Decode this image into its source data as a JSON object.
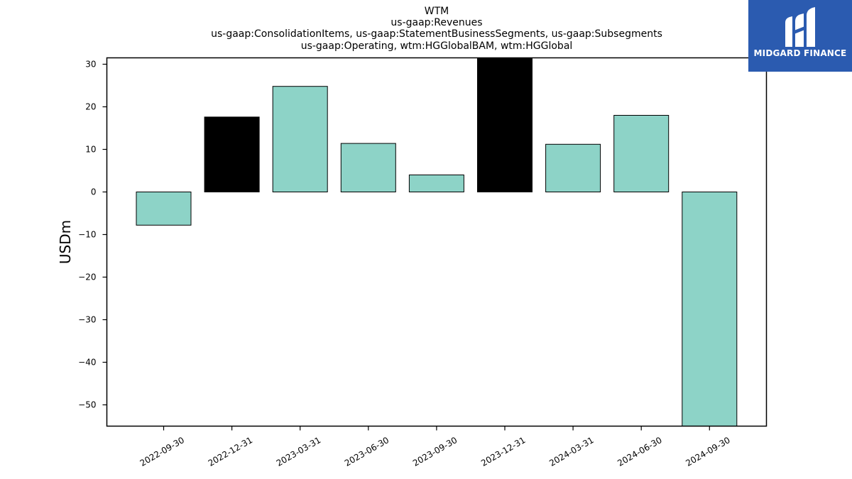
{
  "chart_data": {
    "type": "bar",
    "title_lines": [
      "WTM",
      "us-gaap:Revenues",
      "us-gaap:ConsolidationItems, us-gaap:StatementBusinessSegments, us-gaap:Subsegments",
      "us-gaap:Operating, wtm:HGGlobalBAM, wtm:HGGlobal"
    ],
    "ylabel": "USDm",
    "xlabel": "",
    "categories": [
      "2022-09-30",
      "2022-12-31",
      "2023-03-31",
      "2023-06-30",
      "2023-09-30",
      "2023-12-31",
      "2024-03-31",
      "2024-06-30",
      "2024-09-30"
    ],
    "values": [
      -7.8,
      17.6,
      24.8,
      11.4,
      4.0,
      31.5,
      11.2,
      18.0,
      -55.0
    ],
    "bar_colors": [
      "#8dd3c7",
      "#000000",
      "#8dd3c7",
      "#8dd3c7",
      "#8dd3c7",
      "#000000",
      "#8dd3c7",
      "#8dd3c7",
      "#8dd3c7"
    ],
    "ylim": [
      -55,
      31.5
    ],
    "yticks": [
      30,
      20,
      10,
      0,
      -10,
      -20,
      -30,
      -40,
      -50
    ],
    "ytick_labels": [
      "30",
      "20",
      "10",
      "0",
      "−10",
      "−20",
      "−30",
      "−40",
      "−50"
    ],
    "grid": false,
    "legend": "none"
  },
  "logo": {
    "text": "MIDGARD FINANCE",
    "color": "#2b5bb0"
  }
}
